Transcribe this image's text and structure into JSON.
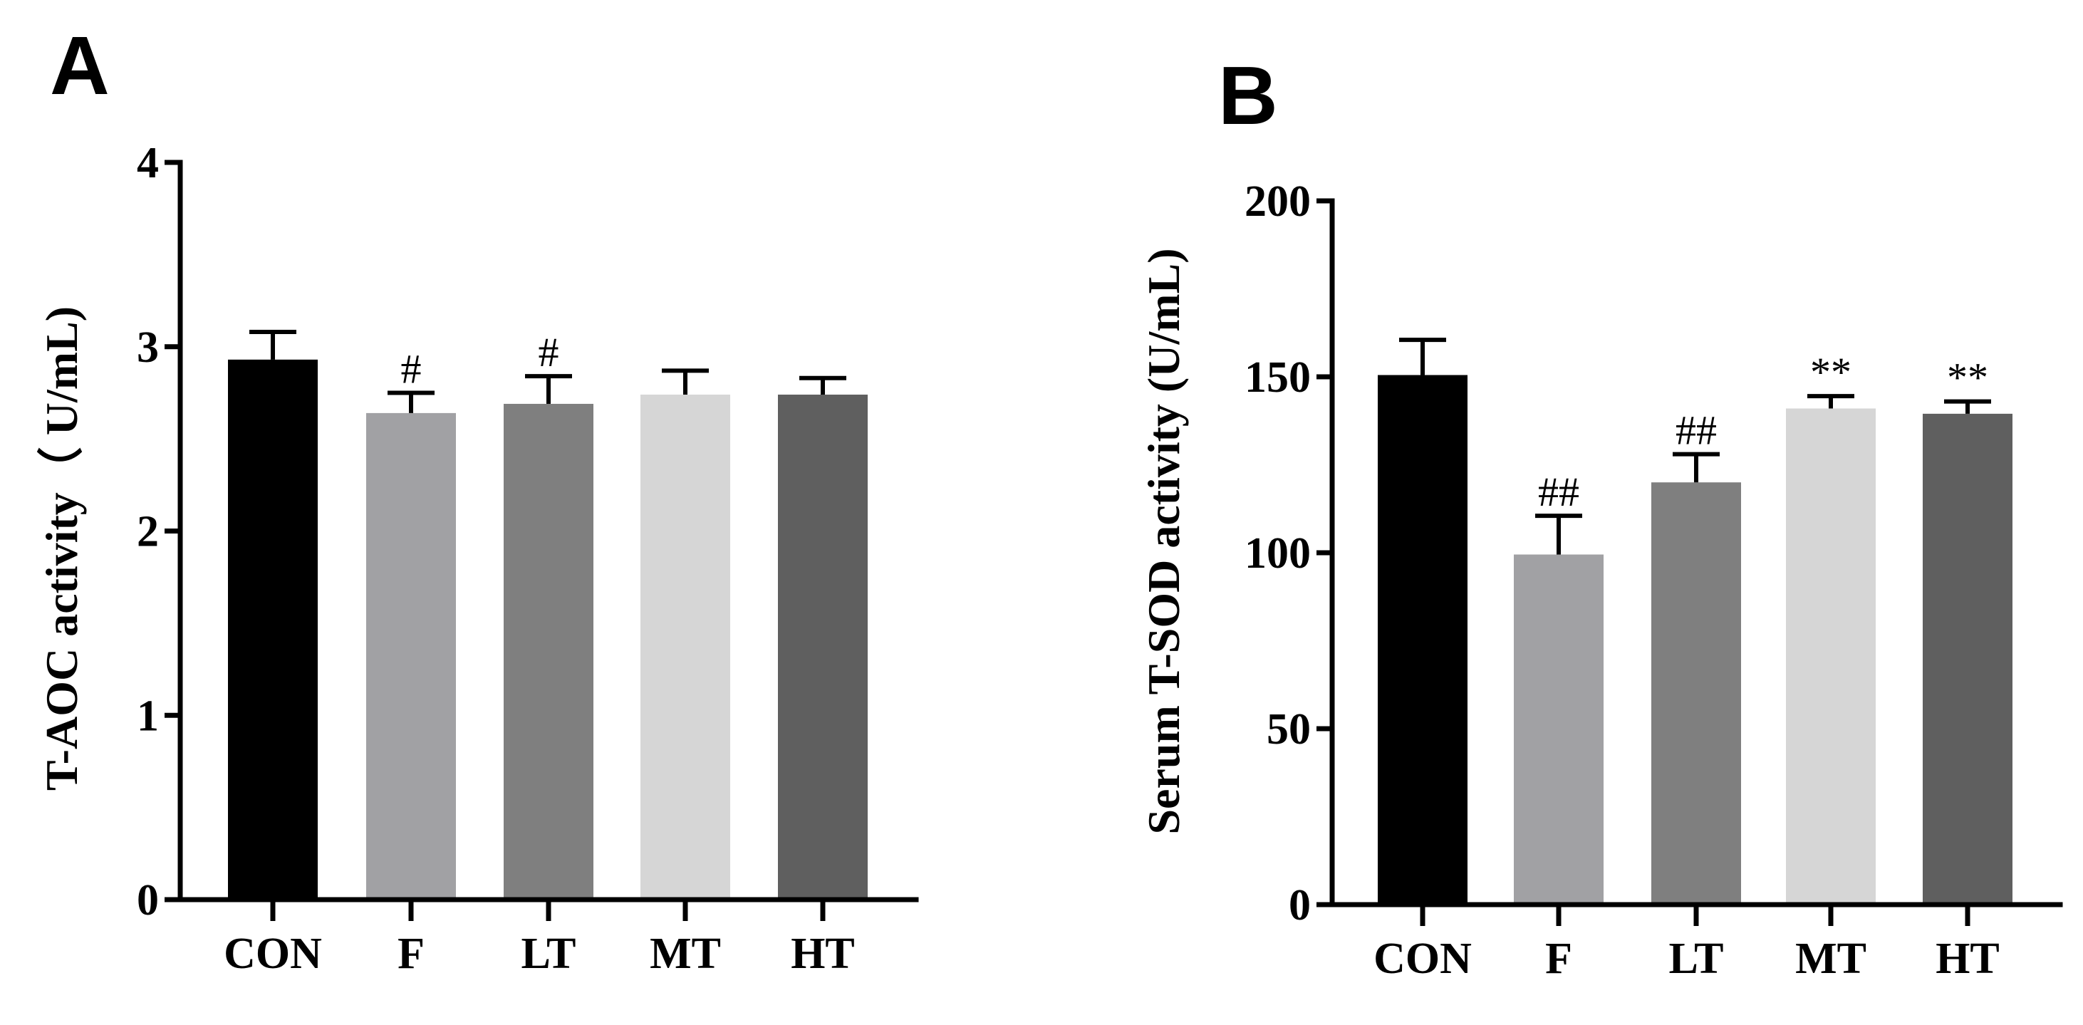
{
  "chart_data": [
    {
      "type": "bar",
      "panel": "A",
      "title": "",
      "xlabel": "",
      "ylabel": "T-AOC activity（ U/mL)",
      "ylim": [
        0,
        4
      ],
      "yticks": [
        "0",
        "1",
        "2",
        "3",
        "4"
      ],
      "categories": [
        "CON",
        "F",
        "LT",
        "MT",
        "HT"
      ],
      "values": [
        2.93,
        2.64,
        2.69,
        2.74,
        2.74
      ],
      "errors": [
        0.15,
        0.11,
        0.15,
        0.13,
        0.09
      ],
      "annotations": [
        "",
        "#",
        "#",
        "",
        ""
      ],
      "colors": [
        "#000000",
        "#a1a1a4",
        "#7f7f7f",
        "#d6d6d6",
        "#5f5f5f"
      ],
      "grid": false
    },
    {
      "type": "bar",
      "panel": "B",
      "title": "",
      "xlabel": "",
      "ylabel": "Serum T-SOD activity (U/mL)",
      "ylim": [
        0,
        200
      ],
      "yticks": [
        "0",
        "50",
        "100",
        "150",
        "200"
      ],
      "categories": [
        "CON",
        "F",
        "LT",
        "MT",
        "HT"
      ],
      "values": [
        150.5,
        99.5,
        120,
        141,
        139.5
      ],
      "errors": [
        10,
        11,
        8,
        3.5,
        3.5
      ],
      "annotations": [
        "",
        "##",
        "##",
        "**",
        "**"
      ],
      "colors": [
        "#000000",
        "#a1a1a4",
        "#7f7f7f",
        "#d6d6d6",
        "#5f5f5f"
      ],
      "grid": false
    }
  ]
}
